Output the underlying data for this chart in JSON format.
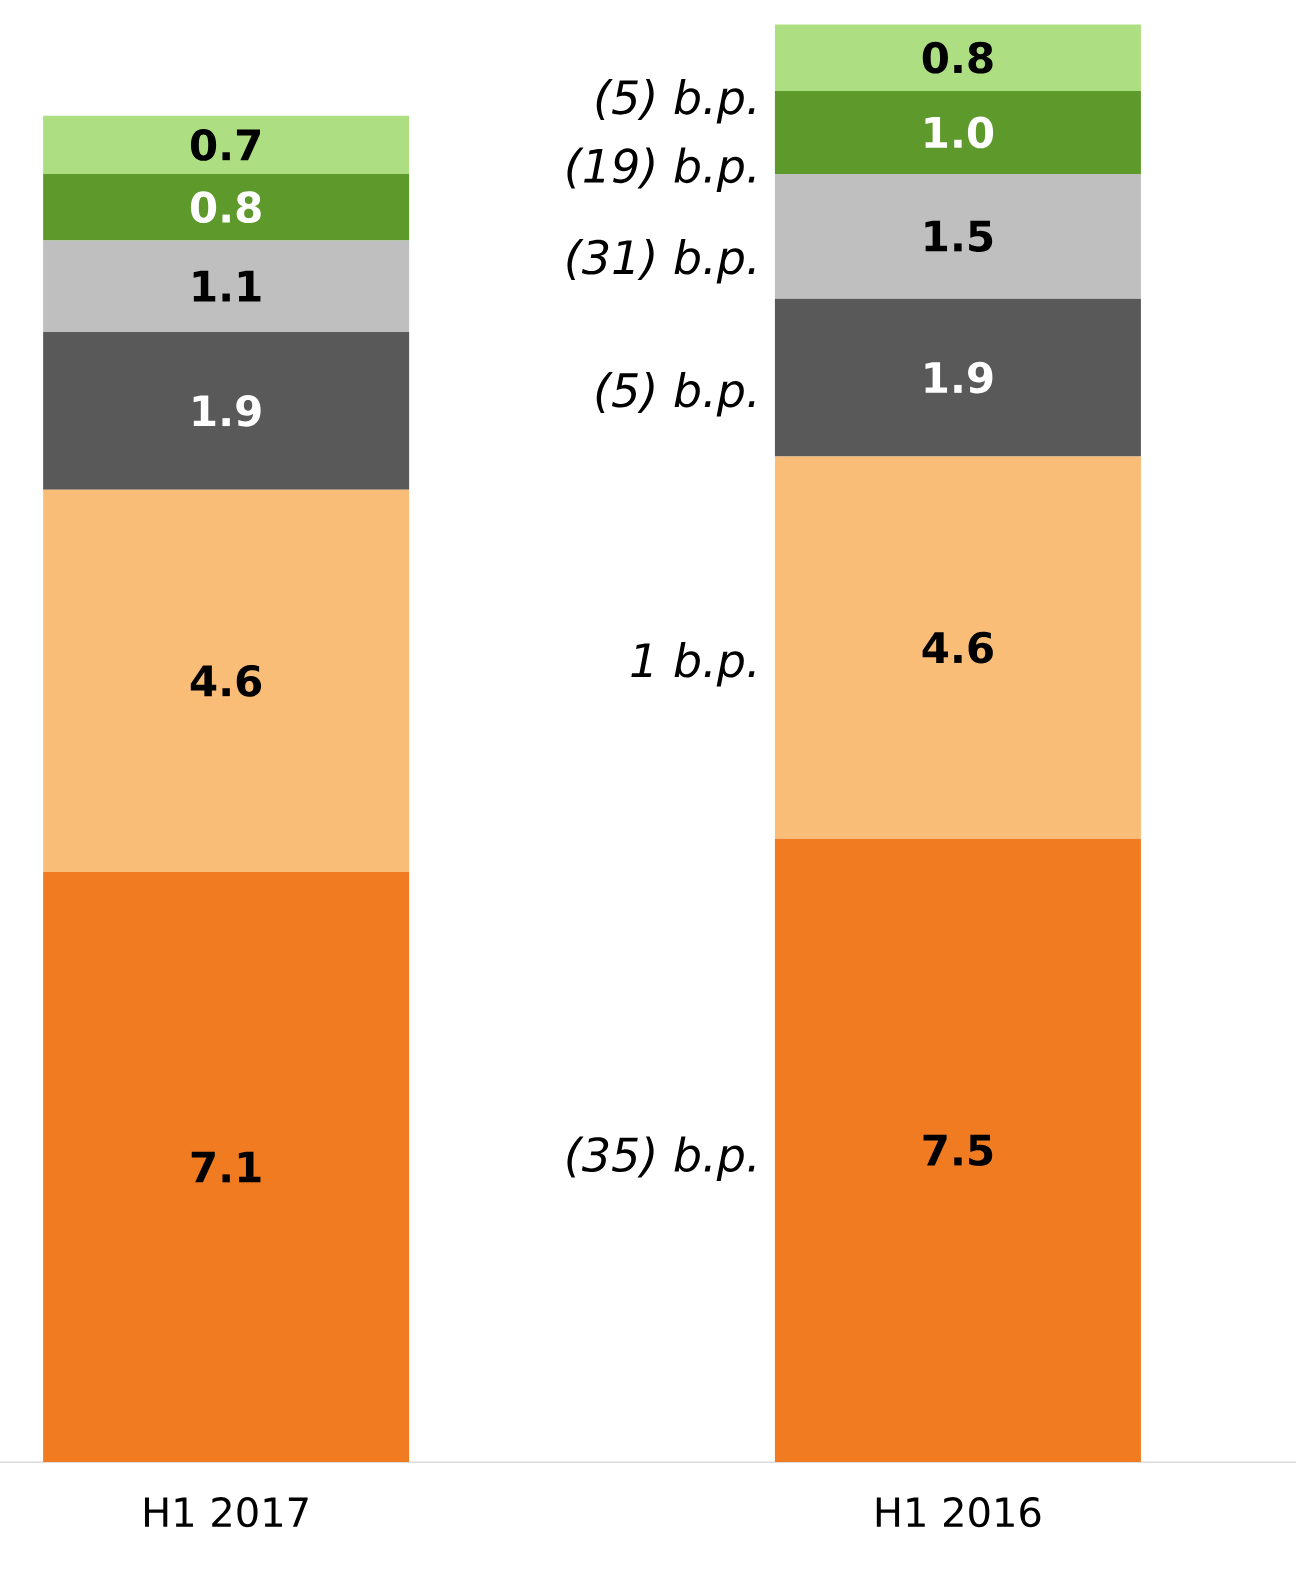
{
  "chart_data": {
    "type": "bar",
    "stacked": true,
    "categories": [
      "H1 2017",
      "H1 2016"
    ],
    "series": [
      {
        "color": "#f07b20",
        "values": [
          7.1,
          7.5
        ],
        "value_labels": [
          "7.1",
          "7.5"
        ]
      },
      {
        "color": "#f9bd78",
        "values": [
          4.6,
          4.6
        ],
        "value_labels": [
          "4.6",
          "4.6"
        ]
      },
      {
        "color": "#595959",
        "values": [
          1.9,
          1.9
        ],
        "value_labels": [
          "1.9",
          "1.9"
        ]
      },
      {
        "color": "#bfbfbf",
        "values": [
          1.1,
          1.5
        ],
        "value_labels": [
          "1.1",
          "1.5"
        ]
      },
      {
        "color": "#5e9a2b",
        "values": [
          0.8,
          1.0
        ],
        "value_labels": [
          "0.8",
          "1.0"
        ]
      },
      {
        "color": "#addf82",
        "values": [
          0.7,
          0.8
        ],
        "value_labels": [
          "0.7",
          "0.8"
        ]
      }
    ],
    "annotations": [
      "(35) b.p.",
      "1 b.p.",
      "(5) b.p.",
      "(31) b.p.",
      "(19) b.p.",
      "(5) b.p."
    ]
  }
}
